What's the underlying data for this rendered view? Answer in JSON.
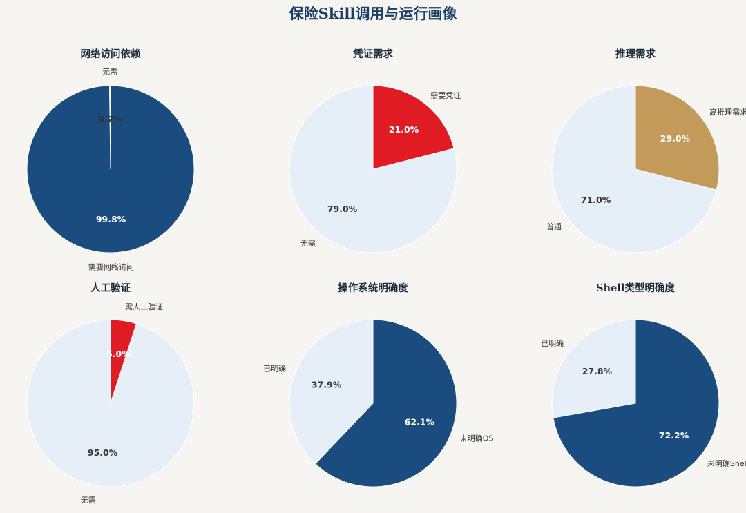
{
  "title": "保险Skill调用与运行画像",
  "colors": {
    "navy": "#1b4c7f",
    "light": "#e6eef7",
    "red": "#e01b24",
    "gold": "#c49a5a"
  },
  "chart_data": [
    {
      "type": "pie",
      "title": "网络访问依赖",
      "slices": [
        {
          "label": "无需",
          "value": 0.2,
          "pct_text": "0.2%",
          "color": "#e6eef7"
        },
        {
          "label": "需要网络访问",
          "value": 99.8,
          "pct_text": "99.8%",
          "color": "#1b4c7f"
        }
      ]
    },
    {
      "type": "pie",
      "title": "凭证需求",
      "slices": [
        {
          "label": "无需",
          "value": 79.0,
          "pct_text": "79.0%",
          "color": "#e6eef7"
        },
        {
          "label": "需要凭证",
          "value": 21.0,
          "pct_text": "21.0%",
          "color": "#e01b24"
        }
      ]
    },
    {
      "type": "pie",
      "title": "推理需求",
      "slices": [
        {
          "label": "普通",
          "value": 71.0,
          "pct_text": "71.0%",
          "color": "#e6eef7"
        },
        {
          "label": "高推理需求",
          "value": 29.0,
          "pct_text": "29.0%",
          "color": "#c49a5a"
        }
      ]
    },
    {
      "type": "pie",
      "title": "人工验证",
      "slices": [
        {
          "label": "无需",
          "value": 95.0,
          "pct_text": "95.0%",
          "color": "#e6eef7"
        },
        {
          "label": "需人工验证",
          "value": 5.0,
          "pct_text": "5.0%",
          "color": "#e01b24"
        }
      ]
    },
    {
      "type": "pie",
      "title": "操作系统明确度",
      "slices": [
        {
          "label": "已明确",
          "value": 37.9,
          "pct_text": "37.9%",
          "color": "#e6eef7"
        },
        {
          "label": "未明确OS",
          "value": 62.1,
          "pct_text": "62.1%",
          "color": "#1b4c7f"
        }
      ]
    },
    {
      "type": "pie",
      "title": "Shell类型明确度",
      "slices": [
        {
          "label": "已明确",
          "value": 27.8,
          "pct_text": "27.8%",
          "color": "#e6eef7"
        },
        {
          "label": "未明确Shell",
          "value": 72.2,
          "pct_text": "72.2%",
          "color": "#1b4c7f"
        }
      ]
    }
  ]
}
